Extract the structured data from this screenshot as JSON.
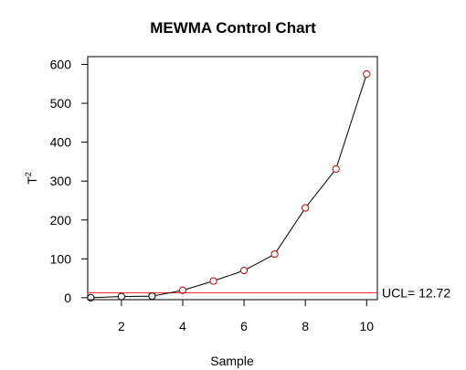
{
  "chart_data": {
    "type": "scatter",
    "title": "MEWMA Control Chart",
    "xlabel": "Sample",
    "ylabel": "T",
    "ylabel_superscript": "2",
    "xlim": [
      0.9,
      10.35
    ],
    "ylim": [
      -5,
      620
    ],
    "x_ticks": [
      2,
      4,
      6,
      8,
      10
    ],
    "y_ticks": [
      0,
      100,
      200,
      300,
      400,
      500,
      600
    ],
    "grid": false,
    "series": [
      {
        "values": [
          {
            "x": 1,
            "y": 0
          },
          {
            "x": 2,
            "y": 3
          },
          {
            "x": 3,
            "y": 4
          },
          {
            "x": 4,
            "y": 19
          },
          {
            "x": 5,
            "y": 43
          },
          {
            "x": 6,
            "y": 70
          },
          {
            "x": 7,
            "y": 112
          },
          {
            "x": 8,
            "y": 231
          },
          {
            "x": 9,
            "y": 331
          },
          {
            "x": 10,
            "y": 575
          }
        ]
      }
    ],
    "ucl": {
      "value": 12.72,
      "label": "UCL= 12.72"
    },
    "colors": {
      "in_control": "#000000",
      "out_of_control": "#cc0000",
      "ucl_line": "#ff2a2a",
      "series_line": "#000000"
    }
  }
}
